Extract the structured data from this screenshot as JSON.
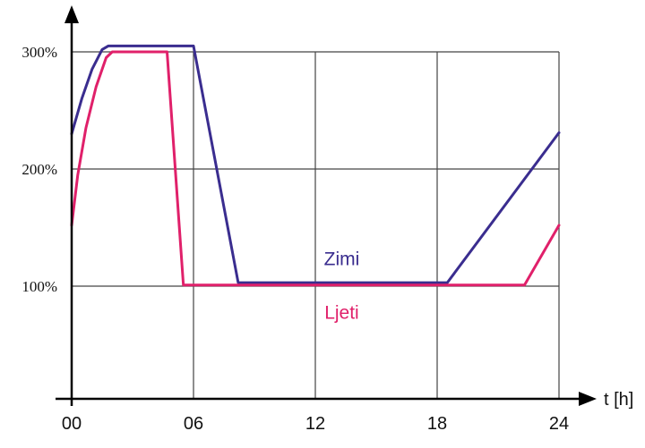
{
  "chart_data": {
    "type": "line",
    "title": "",
    "xlabel": "t [h]",
    "ylabel": "",
    "xlim": [
      0,
      24
    ],
    "ylim": [
      0,
      300
    ],
    "x_ticks": [
      {
        "value": 0,
        "label": "00"
      },
      {
        "value": 6,
        "label": "06"
      },
      {
        "value": 12,
        "label": "12"
      },
      {
        "value": 18,
        "label": "18"
      },
      {
        "value": 24,
        "label": "24"
      }
    ],
    "y_ticks": [
      {
        "value": 100,
        "label": "100%"
      },
      {
        "value": 200,
        "label": "200%"
      },
      {
        "value": 300,
        "label": "300%"
      }
    ],
    "grid": true,
    "series": [
      {
        "name": "Zimi",
        "color": "#3a2d8f",
        "points": [
          [
            0,
            230
          ],
          [
            0.5,
            260
          ],
          [
            1,
            285
          ],
          [
            1.5,
            302
          ],
          [
            1.8,
            305
          ],
          [
            6,
            305
          ],
          [
            8.2,
            103
          ],
          [
            18.5,
            103
          ],
          [
            24,
            231
          ]
        ],
        "label_position": [
          13.3,
          118
        ]
      },
      {
        "name": "Ljeti",
        "color": "#e0206a",
        "points": [
          [
            0,
            152
          ],
          [
            0.3,
            195
          ],
          [
            0.7,
            235
          ],
          [
            1.2,
            270
          ],
          [
            1.7,
            295
          ],
          [
            2,
            300
          ],
          [
            4.7,
            300
          ],
          [
            5.5,
            101
          ],
          [
            22.3,
            101
          ],
          [
            24,
            152
          ]
        ],
        "label_position": [
          13.3,
          72
        ]
      }
    ]
  }
}
